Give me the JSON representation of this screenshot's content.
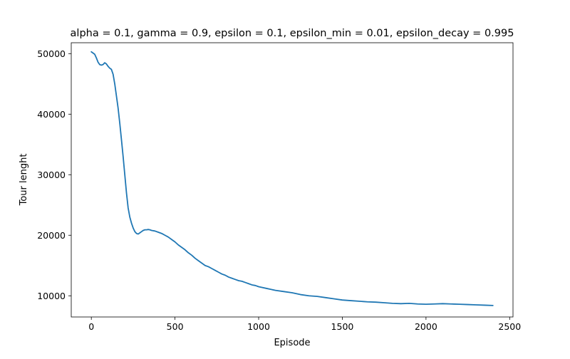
{
  "chart_data": {
    "type": "line",
    "title": "alpha = 0.1, gamma = 0.9, epsilon = 0.1, epsilon_min = 0.01, epsilon_decay = 0.995",
    "xlabel": "Episode",
    "ylabel": "Tour lenght",
    "xlim": [
      -120,
      2520
    ],
    "ylim": [
      6500,
      51800
    ],
    "xticks": [
      0,
      500,
      1000,
      1500,
      2000,
      2500
    ],
    "yticks": [
      10000,
      20000,
      30000,
      40000,
      50000
    ],
    "grid": false,
    "legend": "none",
    "color": "#1f77b4",
    "series": [
      {
        "x": [
          0,
          20,
          30,
          40,
          50,
          60,
          70,
          80,
          90,
          100,
          110,
          120,
          130,
          140,
          150,
          160,
          170,
          180,
          190,
          200,
          210,
          220,
          230,
          240,
          250,
          260,
          270,
          280,
          290,
          300,
          310,
          320,
          330,
          340,
          350,
          360,
          380,
          400,
          420,
          440,
          460,
          480,
          500,
          520,
          540,
          560,
          580,
          600,
          620,
          640,
          660,
          680,
          700,
          720,
          740,
          760,
          780,
          800,
          820,
          840,
          860,
          880,
          900,
          920,
          940,
          960,
          980,
          1000,
          1050,
          1100,
          1150,
          1200,
          1250,
          1300,
          1350,
          1400,
          1450,
          1500,
          1550,
          1600,
          1650,
          1700,
          1750,
          1800,
          1850,
          1900,
          1950,
          2000,
          2050,
          2100,
          2150,
          2200,
          2250,
          2300,
          2350,
          2400
        ],
        "y": [
          50300,
          49900,
          49300,
          48600,
          48200,
          48100,
          48200,
          48500,
          48300,
          47900,
          47600,
          47400,
          46600,
          45000,
          43000,
          41000,
          38500,
          35800,
          33000,
          30000,
          27000,
          24500,
          23000,
          22000,
          21200,
          20600,
          20300,
          20200,
          20400,
          20600,
          20800,
          20900,
          20900,
          20950,
          20900,
          20800,
          20700,
          20500,
          20300,
          20000,
          19700,
          19300,
          18900,
          18400,
          18000,
          17600,
          17100,
          16700,
          16200,
          15800,
          15400,
          15000,
          14800,
          14500,
          14200,
          13900,
          13600,
          13400,
          13100,
          12900,
          12700,
          12500,
          12400,
          12200,
          12000,
          11800,
          11700,
          11500,
          11200,
          10900,
          10700,
          10500,
          10200,
          10000,
          9900,
          9700,
          9500,
          9300,
          9200,
          9100,
          9000,
          8950,
          8850,
          8750,
          8700,
          8750,
          8650,
          8600,
          8650,
          8700,
          8650,
          8600,
          8550,
          8500,
          8450,
          8400
        ]
      }
    ]
  }
}
